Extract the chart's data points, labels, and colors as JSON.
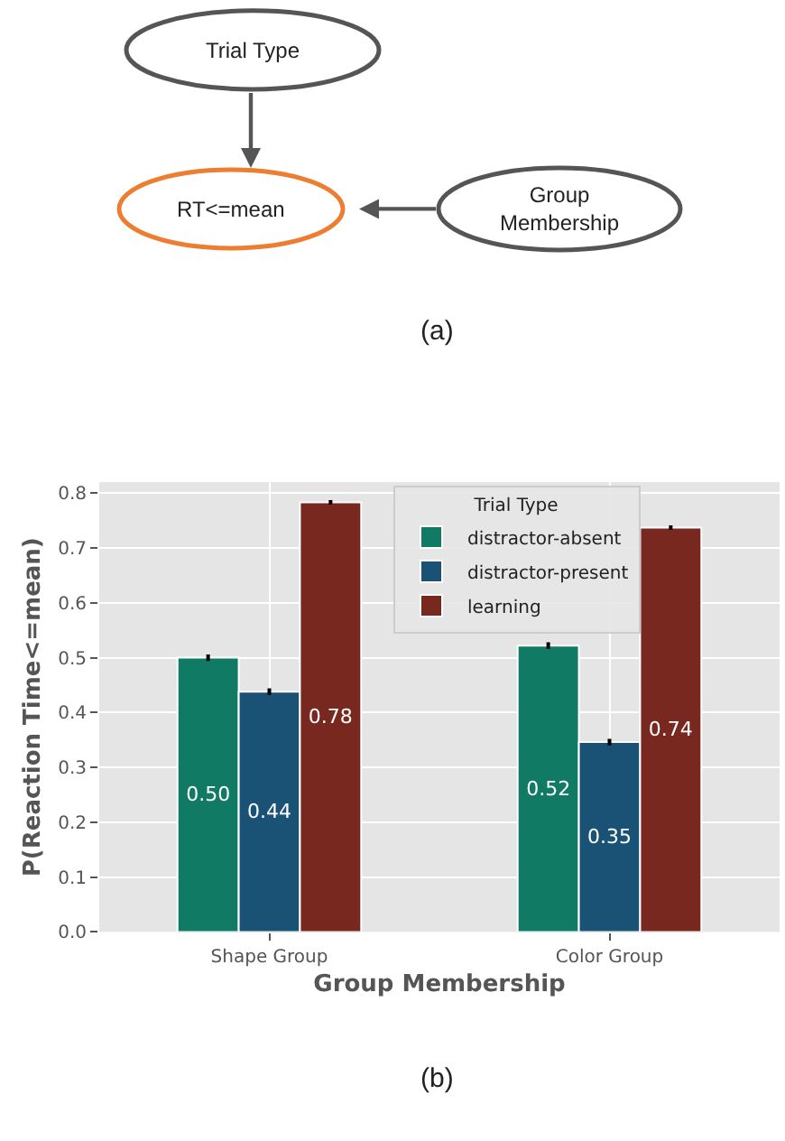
{
  "chart_data": [
    {
      "type": "other",
      "annotations": [
        "Trial Type",
        "RT<=mean",
        "Group Membership",
        "(a)"
      ]
    },
    {
      "type": "bar",
      "xlabel": "Group Membership",
      "ylabel": "P(Reaction Time<=mean)",
      "legend_title": "Trial Type",
      "categories": [
        "Shape Group",
        "Color Group"
      ],
      "series": [
        {
          "name": "distractor-absent",
          "color": "#117a65",
          "values": [
            0.5,
            0.522
          ],
          "errors": [
            0.006,
            0.006
          ],
          "value_labels": [
            "0.50",
            "0.52"
          ]
        },
        {
          "name": "distractor-present",
          "color": "#1a5276",
          "values": [
            0.438,
            0.346
          ],
          "errors": [
            0.006,
            0.006
          ],
          "value_labels": [
            "0.44",
            "0.35"
          ]
        },
        {
          "name": "learning",
          "color": "#78281f",
          "values": [
            0.783,
            0.737
          ],
          "errors": [
            0.004,
            0.004
          ],
          "value_labels": [
            "0.78",
            "0.74"
          ]
        }
      ],
      "ylim": [
        0,
        0.82
      ],
      "yticks": [
        {
          "value": 0,
          "label": "0.0"
        },
        0.1,
        0.2,
        0.3,
        0.4,
        0.5,
        0.6,
        0.7,
        0.8
      ],
      "grid": true,
      "legend": "top right",
      "annotations": [
        "(b)"
      ]
    }
  ]
}
